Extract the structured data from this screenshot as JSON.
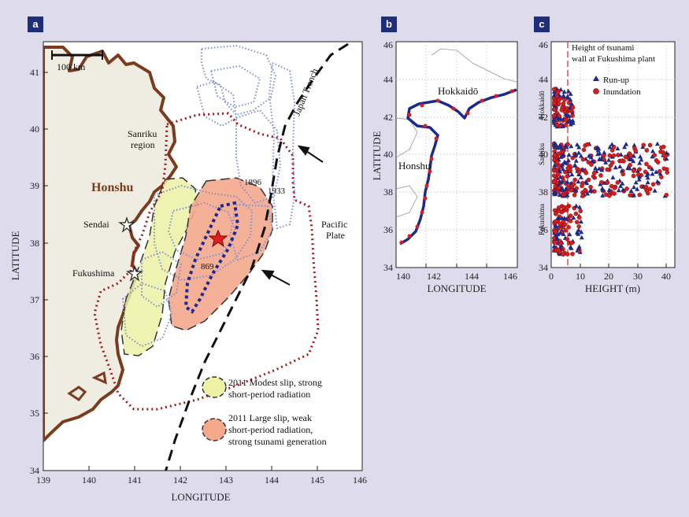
{
  "panels": {
    "a": {
      "letter": "a",
      "xlabel": "LONGITUDE",
      "ylabel": "LATITUDE",
      "xticks": [
        "139",
        "140",
        "141",
        "142",
        "143",
        "144",
        "145",
        "146"
      ],
      "yticks": [
        "34",
        "35",
        "36",
        "37",
        "38",
        "39",
        "40",
        "41"
      ],
      "scalebar": "100 km",
      "labels": {
        "honshu": "Honshu",
        "sanriku1": "Sanriku",
        "sanriku2": "region",
        "sendai": "Sendai",
        "fukushima": "Fukushima",
        "trench": "Japan Trench",
        "y1896": "1896",
        "y1933": "1933",
        "y869": "869",
        "plate1": "Pacific",
        "plate2": "Plate"
      },
      "legend": {
        "yellow1": "2011 Modest slip, strong",
        "yellow2": "short-period radiation",
        "orange1": "2011 Large slip, weak",
        "orange2": "short-period radiation,",
        "orange3": "strong tsunami generation"
      },
      "colors": {
        "land": "#efece1",
        "coast": "#7b3b1e",
        "yellow": "#ecf1a4",
        "orange": "#f4a98c",
        "red_dot": "#a11a1a",
        "blue_dot": "#7c8fd0",
        "navy": "#1f2a8a",
        "star": "#e02020"
      }
    },
    "b": {
      "letter": "b",
      "xlabel": "LONGITUDE",
      "ylabel": "LATITUDE",
      "xticks": [
        "140",
        "142",
        "144",
        "146"
      ],
      "yticks": [
        "34",
        "36",
        "38",
        "40",
        "42",
        "44",
        "46"
      ],
      "labels": {
        "hokkaido": "Hokkaidō",
        "honshu": "Honshu"
      }
    },
    "c": {
      "letter": "c",
      "xlabel": "HEIGHT (m)",
      "xticks": [
        "0",
        "10",
        "20",
        "30",
        "40"
      ],
      "yticks": [
        "34",
        "36",
        "38",
        "40",
        "42",
        "44",
        "46"
      ],
      "wall1": "Height of tsunami",
      "wall2": "wall at Fukushima plant",
      "legend_runup": "Run-up",
      "legend_inund": "Inundation",
      "regions": {
        "hokkaido": "Hokkaidō",
        "sanriku": "Sanriku",
        "fukushima": "Fukushima"
      },
      "wall_height_m": 5.7
    }
  }
}
